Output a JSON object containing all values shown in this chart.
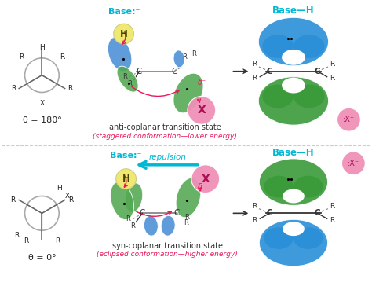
{
  "bg_color": "#ffffff",
  "cyan_color": "#00b8d4",
  "dark_pink": "#e8185a",
  "arrow_cyan": "#00b8d4",
  "blue_orbital": "#4a8fd4",
  "green_orbital": "#52a852",
  "yellow_H": "#f0e870",
  "pink_X": "#f090b8",
  "theta1_label": "θ = 180°",
  "theta2_label": "θ = 0°",
  "label1": "anti-coplanar transition state",
  "label1b": "(staggered conformation—lower energy)",
  "label2": "syn-coplanar transition state",
  "label2b": "(eclipsed conformation—higher energy)",
  "base_label": "Base:⁻",
  "baseH_label": "Base—H",
  "X_minus": ":X⁻",
  "repulsion": "repulsion",
  "delta_minus": "δ⁻"
}
